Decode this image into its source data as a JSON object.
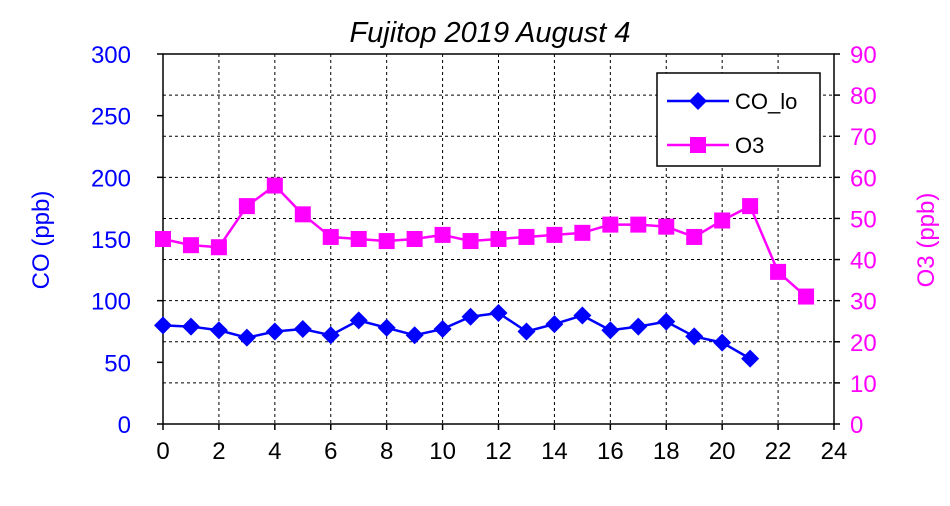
{
  "chart_data": {
    "type": "line",
    "title": "Fujitop 2019 August 4",
    "x": [
      0,
      1,
      2,
      3,
      4,
      5,
      6,
      7,
      8,
      9,
      10,
      11,
      12,
      13,
      14,
      15,
      16,
      17,
      18,
      19,
      20,
      21,
      22,
      23
    ],
    "x_ticks": [
      "0",
      "2",
      "4",
      "6",
      "8",
      "10",
      "12",
      "14",
      "16",
      "18",
      "20",
      "22",
      "24"
    ],
    "xlim": [
      0,
      24
    ],
    "ylabel_left": "CO (ppb)",
    "ylim_left": [
      0,
      300
    ],
    "y_ticks_left": [
      "0",
      "50",
      "100",
      "150",
      "200",
      "250",
      "300"
    ],
    "ylabel_right": "O3 (ppb)",
    "ylim_right": [
      0,
      90
    ],
    "y_ticks_right": [
      "0",
      "10",
      "20",
      "30",
      "40",
      "50",
      "60",
      "70",
      "80",
      "90"
    ],
    "grid": "dashed",
    "legend_position": "top-right",
    "series": [
      {
        "name": "CO_lo",
        "axis": "left",
        "marker": "diamond",
        "color": "#0000ff",
        "values": [
          80,
          79,
          76,
          70,
          75,
          77,
          72,
          84,
          78,
          72,
          77,
          87,
          90,
          75,
          81,
          88,
          76,
          79,
          83,
          71,
          66,
          53,
          null,
          null
        ]
      },
      {
        "name": "O3",
        "axis": "right",
        "marker": "square",
        "color": "#ff00ff",
        "values": [
          45,
          43.5,
          43,
          53,
          58,
          51,
          45.5,
          45,
          44.5,
          45,
          46,
          44.5,
          45,
          45.5,
          46,
          46.5,
          48.5,
          48.5,
          48,
          45.5,
          49.5,
          53,
          37,
          31
        ]
      }
    ]
  }
}
